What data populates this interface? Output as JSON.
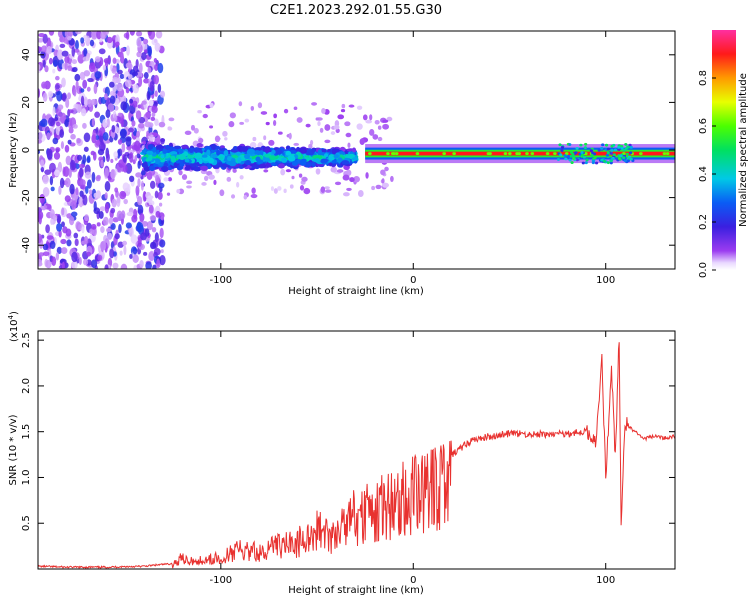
{
  "chart_data": [
    {
      "type": "heatmap",
      "title": "C2E1.2023.292.01.55.G30",
      "xlabel": "Height of straight line (km)",
      "ylabel": "Frequency (Hz)",
      "xlim": [
        -195,
        136
      ],
      "ylim": [
        -50,
        50
      ],
      "xticks": [
        -100,
        0,
        100
      ],
      "yticks": [
        -40,
        -20,
        0,
        20,
        40
      ],
      "colorbar": {
        "label": "Normalized spectral amplitude",
        "range": [
          0.0,
          1.0
        ],
        "ticks": [
          0.0,
          0.2,
          0.4,
          0.6,
          0.8
        ],
        "colormap": "rainbow (violet → blue → cyan → green → yellow → red → magenta)"
      },
      "regions": [
        {
          "x": [
            -195,
            -130
          ],
          "y": [
            -50,
            50
          ],
          "level": 0.25,
          "pattern": "scattered noise"
        },
        {
          "x": [
            -140,
            -30
          ],
          "y": [
            -8,
            6
          ],
          "level": 0.4,
          "pattern": "dense band around -3 Hz"
        },
        {
          "x": [
            -25,
            136
          ],
          "y": [
            -3,
            0
          ],
          "level": 0.9,
          "pattern": "strong narrow tone at ≈ -1.5 Hz"
        }
      ]
    },
    {
      "type": "line",
      "title": "",
      "xlabel": "Height of straight line (km)",
      "ylabel": "SNR (10 * v/v)",
      "y_scale_label": "(x10^4)",
      "xlim": [
        -195,
        136
      ],
      "ylim": [
        0,
        2.6
      ],
      "xticks": [
        -100,
        0,
        100
      ],
      "yticks": [
        0.5,
        1.0,
        1.5,
        2.0,
        2.5
      ],
      "series": [
        {
          "color": "#e8312f",
          "x": [
            -195,
            -180,
            -160,
            -140,
            -125,
            -120,
            -115,
            -100,
            -90,
            -80,
            -70,
            -60,
            -50,
            -40,
            -30,
            -20,
            -10,
            0,
            10,
            20,
            30,
            40,
            50,
            60,
            70,
            80,
            90,
            95,
            98,
            100,
            103,
            105,
            107,
            108,
            110,
            115,
            120,
            125,
            130,
            136
          ],
          "values": [
            0.03,
            0.02,
            0.02,
            0.03,
            0.06,
            0.15,
            0.1,
            0.15,
            0.25,
            0.22,
            0.3,
            0.35,
            0.5,
            0.45,
            0.7,
            0.75,
            0.9,
            0.95,
            1.1,
            1.25,
            1.4,
            1.45,
            1.48,
            1.47,
            1.47,
            1.48,
            1.5,
            1.4,
            2.3,
            1.0,
            2.2,
            1.2,
            2.55,
            0.45,
            1.6,
            1.5,
            1.42,
            1.45,
            1.43,
            1.45
          ]
        }
      ]
    }
  ]
}
